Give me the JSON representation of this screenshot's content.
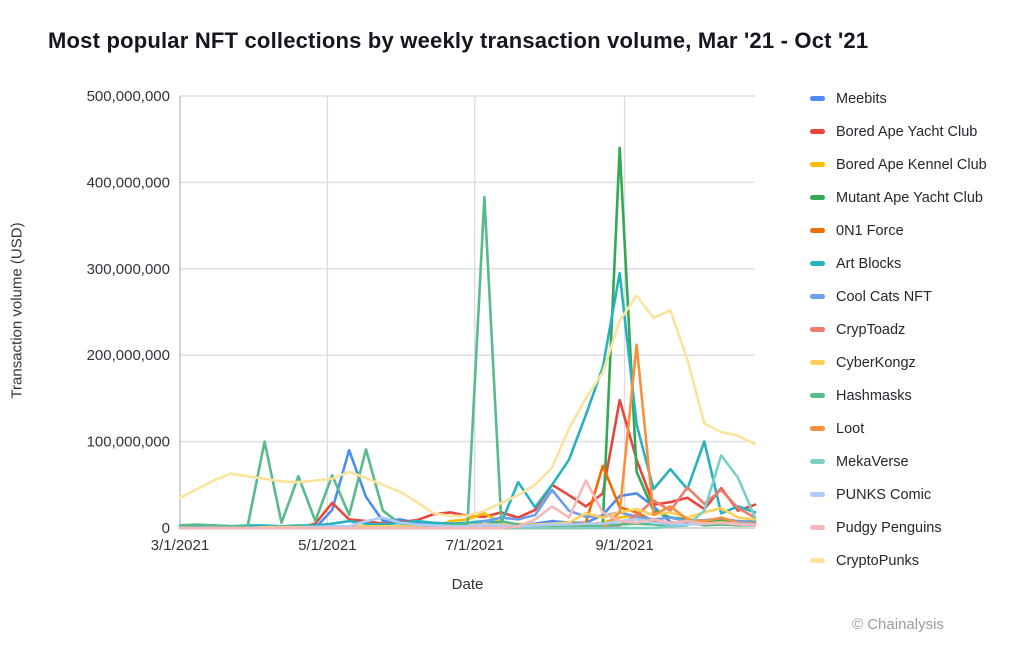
{
  "title": "Most popular NFT collections by weekly transaction volume, Mar '21 - Oct '21",
  "attribution": "© Chainalysis",
  "chart_data": {
    "type": "line",
    "title": "Most popular NFT collections by weekly transaction volume, Mar '21 - Oct '21",
    "xlabel": "Date",
    "ylabel": "Transaction volume (USD)",
    "grid": true,
    "legend_position": "right",
    "ylim": [
      0,
      500000000
    ],
    "y_ticks": [
      0,
      100000000,
      200000000,
      300000000,
      400000000,
      500000000
    ],
    "x_ticks": [
      {
        "label": "3/1/2021",
        "days_from_start": 0
      },
      {
        "label": "5/1/2021",
        "days_from_start": 61
      },
      {
        "label": "7/1/2021",
        "days_from_start": 122
      },
      {
        "label": "9/1/2021",
        "days_from_start": 184
      }
    ],
    "x_total_days": 238,
    "values_unit": "millions of USD (weekly transaction volume)",
    "x": [
      "3/1/2021",
      "3/8/2021",
      "3/15/2021",
      "3/22/2021",
      "3/29/2021",
      "4/5/2021",
      "4/12/2021",
      "4/19/2021",
      "4/26/2021",
      "5/3/2021",
      "5/10/2021",
      "5/17/2021",
      "5/24/2021",
      "5/31/2021",
      "6/7/2021",
      "6/14/2021",
      "6/21/2021",
      "6/28/2021",
      "7/5/2021",
      "7/12/2021",
      "7/19/2021",
      "7/26/2021",
      "8/2/2021",
      "8/9/2021",
      "8/16/2021",
      "8/23/2021",
      "8/30/2021",
      "9/6/2021",
      "9/13/2021",
      "9/20/2021",
      "9/27/2021",
      "10/4/2021",
      "10/11/2021",
      "10/18/2021",
      "10/25/2021"
    ],
    "series": [
      {
        "name": "Meebits",
        "color": "#4c8bf5",
        "values_musd": [
          0,
          0,
          0,
          0,
          0,
          0,
          0,
          0,
          0,
          21,
          90,
          36,
          8,
          10,
          6,
          4,
          3,
          3,
          4,
          5,
          4,
          5,
          8,
          6,
          6,
          15,
          37,
          40,
          25,
          7,
          6,
          5,
          6,
          5,
          4
        ]
      },
      {
        "name": "Bored Ape Yacht Club",
        "color": "#e8453c",
        "values_musd": [
          0,
          0,
          0,
          0,
          0,
          0,
          0,
          0,
          5,
          29,
          10,
          8,
          5,
          7,
          9,
          16,
          18,
          14,
          13,
          18,
          12,
          21,
          50,
          38,
          25,
          40,
          148,
          79,
          27,
          30,
          35,
          22,
          46,
          20,
          27
        ]
      },
      {
        "name": "Bored Ape Kennel Club",
        "color": "#fbbc04",
        "values_musd": [
          0,
          0,
          0,
          0,
          0,
          0,
          0,
          0,
          0,
          0,
          0,
          0,
          0,
          0,
          0,
          0,
          8,
          10,
          17,
          6,
          4,
          3,
          4,
          3,
          4,
          6,
          12,
          15,
          8,
          6,
          8,
          6,
          8,
          5,
          4
        ]
      },
      {
        "name": "Mutant Ape Yacht Club",
        "color": "#34a853",
        "values_musd": [
          0,
          0,
          0,
          0,
          0,
          0,
          0,
          0,
          0,
          0,
          0,
          0,
          0,
          0,
          0,
          0,
          0,
          0,
          0,
          0,
          0,
          0,
          0,
          0,
          0,
          5,
          440,
          65,
          20,
          12,
          10,
          8,
          10,
          7,
          8
        ]
      },
      {
        "name": "0N1 Force",
        "color": "#ef6c00",
        "values_musd": [
          0,
          0,
          0,
          0,
          0,
          0,
          0,
          0,
          0,
          0,
          0,
          0,
          0,
          0,
          0,
          0,
          0,
          0,
          0,
          0,
          0,
          0,
          0,
          4,
          6,
          72,
          24,
          18,
          8,
          6,
          5,
          4,
          6,
          4,
          3
        ]
      },
      {
        "name": "Art Blocks",
        "color": "#27b2bf",
        "values_musd": [
          2,
          2,
          3,
          2,
          3,
          3,
          2,
          3,
          3,
          5,
          8,
          5,
          4,
          6,
          8,
          6,
          5,
          6,
          8,
          6,
          53,
          24,
          50,
          79,
          131,
          186,
          295,
          120,
          45,
          68,
          45,
          100,
          17,
          25,
          18
        ]
      },
      {
        "name": "Cool Cats NFT",
        "color": "#6d9eeb",
        "values_musd": [
          0,
          0,
          0,
          0,
          0,
          0,
          0,
          0,
          0,
          0,
          0,
          0,
          0,
          0,
          0,
          0,
          0,
          0,
          8,
          12,
          10,
          15,
          44,
          20,
          13,
          14,
          18,
          13,
          10,
          12,
          8,
          9,
          11,
          8,
          7
        ]
      },
      {
        "name": "CrypToadz",
        "color": "#f07b6e",
        "values_musd": [
          0,
          0,
          0,
          0,
          0,
          0,
          0,
          0,
          0,
          0,
          0,
          0,
          0,
          0,
          0,
          0,
          0,
          0,
          0,
          0,
          0,
          0,
          0,
          0,
          0,
          0,
          3,
          15,
          32,
          20,
          47,
          28,
          44,
          23,
          12
        ]
      },
      {
        "name": "CyberKongz",
        "color": "#fdd05a",
        "values_musd": [
          0,
          0,
          0,
          0,
          0,
          1,
          1,
          1,
          1,
          2,
          2,
          2,
          2,
          2,
          2,
          3,
          3,
          3,
          4,
          4,
          5,
          4,
          5,
          6,
          17,
          12,
          18,
          22,
          15,
          18,
          12,
          18,
          23,
          12,
          10
        ]
      },
      {
        "name": "Hashmasks",
        "color": "#57bb8a",
        "values_musd": [
          3,
          4,
          3,
          2,
          2,
          100,
          6,
          60,
          8,
          61,
          15,
          91,
          20,
          5,
          4,
          3,
          3,
          5,
          383,
          8,
          4,
          3,
          3,
          2,
          2,
          3,
          4,
          5,
          4,
          3,
          8,
          3,
          4,
          3,
          3
        ]
      },
      {
        "name": "Loot",
        "color": "#fa903e",
        "values_musd": [
          0,
          0,
          0,
          0,
          0,
          0,
          0,
          0,
          0,
          0,
          0,
          0,
          0,
          0,
          0,
          0,
          0,
          0,
          0,
          0,
          0,
          0,
          0,
          0,
          0,
          0,
          18,
          212,
          15,
          25,
          10,
          8,
          12,
          6,
          5
        ]
      },
      {
        "name": "MekaVerse",
        "color": "#7ccfc6",
        "values_musd": [
          0,
          0,
          0,
          0,
          0,
          0,
          0,
          0,
          0,
          0,
          0,
          0,
          0,
          0,
          0,
          0,
          0,
          0,
          0,
          0,
          0,
          0,
          0,
          0,
          0,
          0,
          0,
          0,
          0,
          2,
          3,
          20,
          84,
          58,
          12
        ]
      },
      {
        "name": "PUNKS Comic",
        "color": "#aecbfa",
        "values_musd": [
          0,
          0,
          0,
          0,
          0,
          0,
          0,
          0,
          1,
          2,
          2,
          8,
          12,
          6,
          4,
          3,
          2,
          2,
          3,
          3,
          2,
          3,
          4,
          4,
          5,
          5,
          8,
          10,
          6,
          5,
          4,
          5,
          6,
          5,
          4
        ]
      },
      {
        "name": "Pudgy Penguins",
        "color": "#f6b8b8",
        "values_musd": [
          0,
          0,
          0,
          0,
          0,
          0,
          0,
          0,
          0,
          0,
          0,
          0,
          0,
          0,
          0,
          0,
          0,
          0,
          0,
          0,
          2,
          10,
          25,
          12,
          55,
          18,
          8,
          6,
          10,
          6,
          8,
          5,
          6,
          4,
          3
        ]
      },
      {
        "name": "CryptoPunks",
        "color": "#fbe39e",
        "values_musd": [
          35,
          45,
          55,
          63,
          60,
          57,
          54,
          53,
          55,
          57,
          65,
          58,
          50,
          42,
          30,
          17,
          14,
          14,
          20,
          29,
          38,
          50,
          70,
          115,
          150,
          180,
          240,
          269,
          243,
          252,
          195,
          121,
          111,
          107,
          97
        ]
      }
    ]
  }
}
